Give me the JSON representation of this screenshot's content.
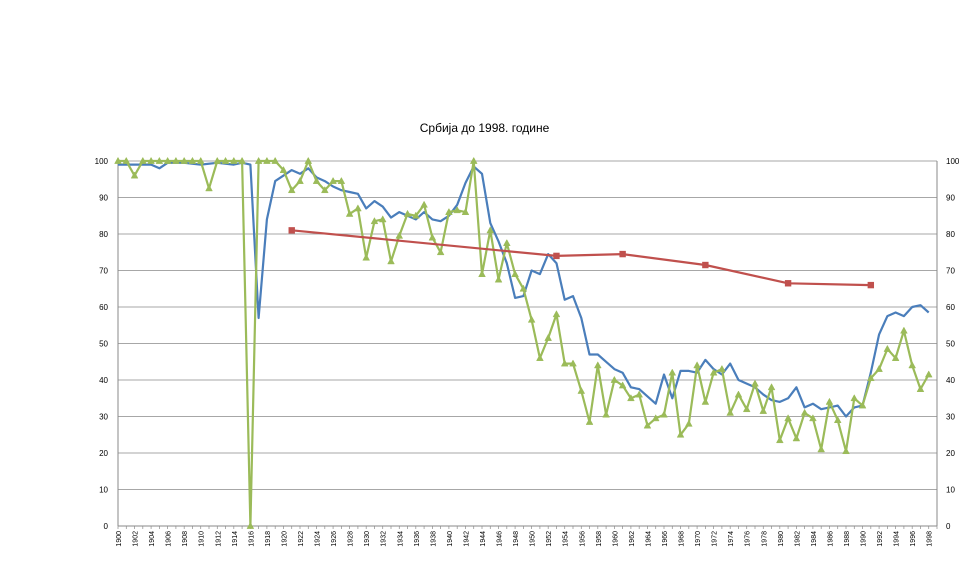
{
  "chart_data": {
    "type": "line",
    "title": "Србија до 1998. године",
    "xlabel": "",
    "ylabel": "",
    "ylim": [
      0,
      100
    ],
    "xlim": [
      1900,
      1999
    ],
    "secondary_axis": true,
    "grid": "horizontal",
    "legend": "none",
    "y_ticks": [
      0,
      10,
      20,
      30,
      40,
      50,
      60,
      70,
      80,
      90,
      100
    ],
    "x_tick_labels": [
      "1900",
      "1902",
      "1904",
      "1906",
      "1908",
      "1910",
      "1912",
      "1914",
      "1916",
      "1918",
      "1920",
      "1922",
      "1924",
      "1926",
      "1928",
      "1930",
      "1932",
      "1934",
      "1936",
      "1938",
      "1940",
      "1942",
      "1944",
      "1946",
      "1948",
      "1950",
      "1952",
      "1954",
      "1956",
      "1958",
      "1960",
      "1962",
      "1964",
      "1966",
      "1968",
      "1970",
      "1972",
      "1974",
      "1976",
      "1978",
      "1980",
      "1982",
      "1984",
      "1986",
      "1988",
      "1990",
      "1992",
      "1994",
      "1996",
      "1998"
    ],
    "series": [
      {
        "color": "#4a7ebb",
        "marker": "none",
        "points": [
          [
            1900,
            99
          ],
          [
            1902,
            99
          ],
          [
            1904,
            99
          ],
          [
            1905,
            98
          ],
          [
            1906,
            99.5
          ],
          [
            1908,
            99.5
          ],
          [
            1910,
            99
          ],
          [
            1912,
            99.5
          ],
          [
            1914,
            99
          ],
          [
            1915,
            99.5
          ],
          [
            1916,
            99
          ],
          [
            1917,
            57
          ],
          [
            1918,
            84
          ],
          [
            1919,
            94.5
          ],
          [
            1920,
            96
          ],
          [
            1921,
            97.5
          ],
          [
            1922,
            96.5
          ],
          [
            1923,
            98
          ],
          [
            1924,
            95.5
          ],
          [
            1925,
            94.5
          ],
          [
            1926,
            93
          ],
          [
            1927,
            92
          ],
          [
            1928,
            91.5
          ],
          [
            1929,
            91
          ],
          [
            1930,
            87
          ],
          [
            1931,
            89
          ],
          [
            1932,
            87.5
          ],
          [
            1933,
            84.5
          ],
          [
            1934,
            86
          ],
          [
            1935,
            85
          ],
          [
            1936,
            84
          ],
          [
            1937,
            86
          ],
          [
            1938,
            84
          ],
          [
            1939,
            83.5
          ],
          [
            1940,
            85
          ],
          [
            1941,
            88
          ],
          [
            1942,
            94
          ],
          [
            1943,
            98.5
          ],
          [
            1944,
            96.5
          ],
          [
            1945,
            83
          ],
          [
            1946,
            78
          ],
          [
            1947,
            72
          ],
          [
            1948,
            62.5
          ],
          [
            1949,
            63
          ],
          [
            1950,
            70
          ],
          [
            1951,
            69
          ],
          [
            1952,
            74.5
          ],
          [
            1953,
            72
          ],
          [
            1954,
            62
          ],
          [
            1955,
            63
          ],
          [
            1956,
            57
          ],
          [
            1957,
            47
          ],
          [
            1958,
            47
          ],
          [
            1959,
            45
          ],
          [
            1960,
            43
          ],
          [
            1961,
            42
          ],
          [
            1962,
            38
          ],
          [
            1963,
            37.5
          ],
          [
            1964,
            35.5
          ],
          [
            1965,
            33.5
          ],
          [
            1966,
            41.5
          ],
          [
            1967,
            35
          ],
          [
            1968,
            42.5
          ],
          [
            1969,
            42.5
          ],
          [
            1970,
            42
          ],
          [
            1971,
            45.5
          ],
          [
            1972,
            43
          ],
          [
            1973,
            41.5
          ],
          [
            1974,
            44.5
          ],
          [
            1975,
            40
          ],
          [
            1976,
            39
          ],
          [
            1977,
            38
          ],
          [
            1978,
            36
          ],
          [
            1979,
            34.5
          ],
          [
            1980,
            34
          ],
          [
            1981,
            35
          ],
          [
            1982,
            38
          ],
          [
            1983,
            32.5
          ],
          [
            1984,
            33.5
          ],
          [
            1985,
            32
          ],
          [
            1986,
            32.5
          ],
          [
            1987,
            33
          ],
          [
            1988,
            30
          ],
          [
            1989,
            32.5
          ],
          [
            1990,
            33
          ],
          [
            1991,
            42
          ],
          [
            1992,
            52.5
          ],
          [
            1993,
            57.5
          ],
          [
            1994,
            58.5
          ],
          [
            1995,
            57.5
          ],
          [
            1996,
            60
          ],
          [
            1997,
            60.5
          ],
          [
            1998,
            58.5
          ]
        ]
      },
      {
        "color": "#9bbb59",
        "marker": "triangle",
        "points": [
          [
            1900,
            100
          ],
          [
            1901,
            100
          ],
          [
            1902,
            96
          ],
          [
            1903,
            100
          ],
          [
            1904,
            100
          ],
          [
            1905,
            100
          ],
          [
            1906,
            100
          ],
          [
            1907,
            100
          ],
          [
            1908,
            100
          ],
          [
            1909,
            100
          ],
          [
            1910,
            100
          ],
          [
            1911,
            92.5
          ],
          [
            1912,
            100
          ],
          [
            1913,
            100
          ],
          [
            1914,
            100
          ],
          [
            1915,
            100
          ],
          [
            1916,
            0
          ],
          [
            1917,
            100
          ],
          [
            1918,
            100
          ],
          [
            1919,
            100
          ],
          [
            1920,
            97.5
          ],
          [
            1921,
            92
          ],
          [
            1922,
            94.5
          ],
          [
            1923,
            100
          ],
          [
            1924,
            94.5
          ],
          [
            1925,
            92
          ],
          [
            1926,
            94.5
          ],
          [
            1927,
            94.5
          ],
          [
            1928,
            85.5
          ],
          [
            1929,
            87
          ],
          [
            1930,
            73.5
          ],
          [
            1931,
            83.5
          ],
          [
            1932,
            84
          ],
          [
            1933,
            72.5
          ],
          [
            1934,
            79.5
          ],
          [
            1935,
            85.5
          ],
          [
            1936,
            85
          ],
          [
            1937,
            88
          ],
          [
            1938,
            79
          ],
          [
            1939,
            75
          ],
          [
            1940,
            86
          ],
          [
            1941,
            86.5
          ],
          [
            1942,
            86
          ],
          [
            1943,
            100
          ],
          [
            1944,
            69
          ],
          [
            1945,
            81
          ],
          [
            1946,
            67.5
          ],
          [
            1947,
            77.5
          ],
          [
            1948,
            69
          ],
          [
            1949,
            65
          ],
          [
            1950,
            56.5
          ],
          [
            1951,
            46
          ],
          [
            1952,
            51.5
          ],
          [
            1953,
            58
          ],
          [
            1954,
            44.5
          ],
          [
            1955,
            44.5
          ],
          [
            1956,
            37
          ],
          [
            1957,
            28.5
          ],
          [
            1958,
            44
          ],
          [
            1959,
            30.5
          ],
          [
            1960,
            40
          ],
          [
            1961,
            38.5
          ],
          [
            1962,
            35
          ],
          [
            1963,
            36
          ],
          [
            1964,
            27.5
          ],
          [
            1965,
            29.5
          ],
          [
            1966,
            30.5
          ],
          [
            1967,
            42
          ],
          [
            1968,
            25
          ],
          [
            1969,
            28
          ],
          [
            1970,
            44
          ],
          [
            1971,
            34
          ],
          [
            1972,
            42
          ],
          [
            1973,
            43
          ],
          [
            1974,
            31
          ],
          [
            1975,
            36
          ],
          [
            1976,
            32
          ],
          [
            1977,
            39
          ],
          [
            1978,
            31.5
          ],
          [
            1979,
            38
          ],
          [
            1980,
            23.5
          ],
          [
            1981,
            29.5
          ],
          [
            1982,
            24
          ],
          [
            1983,
            31
          ],
          [
            1984,
            29.5
          ],
          [
            1985,
            21
          ],
          [
            1986,
            34
          ],
          [
            1987,
            29
          ],
          [
            1988,
            20.5
          ],
          [
            1989,
            35
          ],
          [
            1990,
            33
          ],
          [
            1991,
            40.5
          ],
          [
            1992,
            43
          ],
          [
            1993,
            48.5
          ],
          [
            1994,
            46
          ],
          [
            1995,
            53.5
          ],
          [
            1996,
            44
          ],
          [
            1997,
            37.5
          ],
          [
            1998,
            41.5
          ]
        ]
      },
      {
        "color": "#c0504d",
        "marker": "square",
        "points": [
          [
            1921,
            81
          ],
          [
            1953,
            74
          ],
          [
            1961,
            74.5
          ],
          [
            1971,
            71.5
          ],
          [
            1981,
            66.5
          ],
          [
            1991,
            66
          ]
        ]
      }
    ]
  }
}
